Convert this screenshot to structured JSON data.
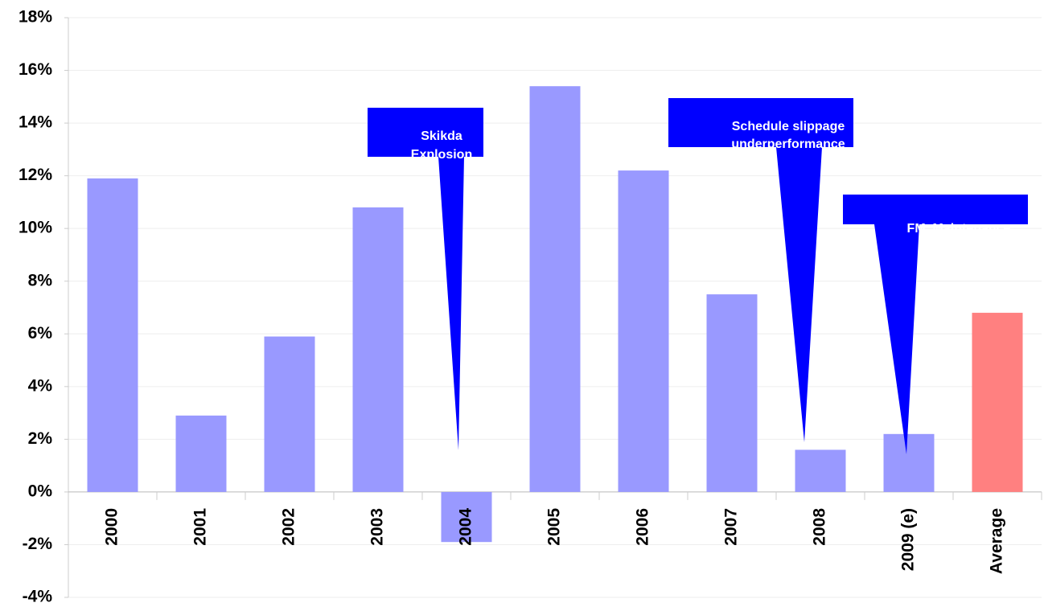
{
  "chart_data": {
    "type": "bar",
    "categories": [
      "2000",
      "2001",
      "2002",
      "2003",
      "2004",
      "2005",
      "2006",
      "2007",
      "2008",
      "2009 (e)",
      "Average"
    ],
    "values": [
      11.9,
      2.9,
      5.9,
      10.8,
      -1.9,
      15.4,
      12.2,
      7.5,
      1.6,
      2.2,
      6.8
    ],
    "colors": [
      "#9999ff",
      "#9999ff",
      "#9999ff",
      "#9999ff",
      "#9999ff",
      "#9999ff",
      "#9999ff",
      "#9999ff",
      "#9999ff",
      "#9999ff",
      "#ff8080"
    ],
    "ylim": [
      -4,
      18
    ],
    "yticks": [
      {
        "value": -4,
        "label": "-4%"
      },
      {
        "value": -2,
        "label": "-2%"
      },
      {
        "value": 0,
        "label": "0%"
      },
      {
        "value": 2,
        "label": "2%"
      },
      {
        "value": 4,
        "label": "4%"
      },
      {
        "value": 6,
        "label": "6%"
      },
      {
        "value": 8,
        "label": "8%"
      },
      {
        "value": 10,
        "label": "10%"
      },
      {
        "value": 12,
        "label": "12%"
      },
      {
        "value": 14,
        "label": "14%"
      },
      {
        "value": 16,
        "label": "16%"
      },
      {
        "value": 18,
        "label": "18%"
      }
    ],
    "grid": true,
    "annotations": [
      {
        "lines": [
          "Skikda",
          "Explosion"
        ]
      },
      {
        "lines": [
          "Schedule slippage",
          "underperformance"
        ]
      },
      {
        "lines": [
          "FM, Maintenance"
        ]
      }
    ]
  }
}
